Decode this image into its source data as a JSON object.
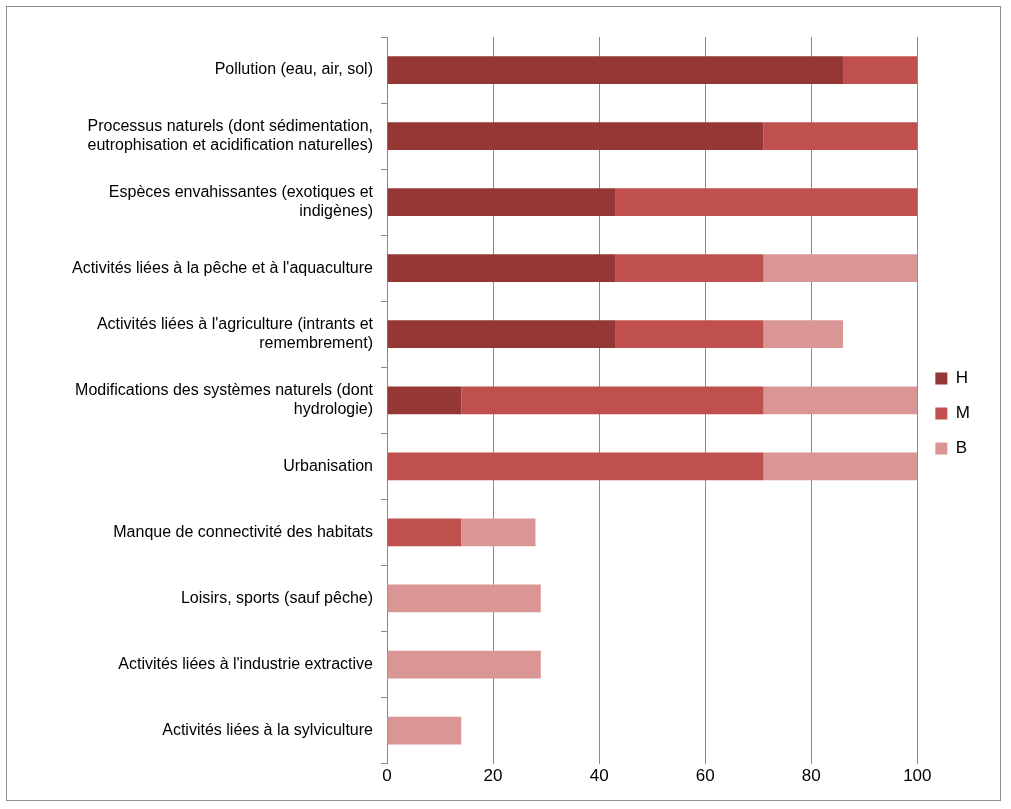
{
  "chart_data": {
    "type": "bar",
    "orientation": "horizontal",
    "stacked": true,
    "categories": [
      "Pollution (eau, air, sol)",
      "Processus naturels (dont sédimentation, eutrophisation et acidification naturelles)",
      "Espèces envahissantes (exotiques et indigènes)",
      "Activités liées à la pêche et à l'aquaculture",
      "Activités liées à l'agriculture (intrants et remembrement)",
      "Modifications des systèmes naturels (dont hydrologie)",
      "Urbanisation",
      "Manque de connectivité des habitats",
      "Loisirs, sports (sauf pêche)",
      "Activités liées à l'industrie extractive",
      "Activités liées à la sylviculture"
    ],
    "series": [
      {
        "name": "H",
        "color": "#953735",
        "values": [
          86,
          71,
          43,
          43,
          43,
          14,
          0,
          0,
          0,
          0,
          0
        ]
      },
      {
        "name": "M",
        "color": "#c0504d",
        "values": [
          14,
          29,
          57,
          28,
          28,
          57,
          71,
          14,
          0,
          0,
          0
        ]
      },
      {
        "name": "B",
        "color": "#d99694",
        "values": [
          0,
          0,
          0,
          29,
          15,
          29,
          29,
          14,
          29,
          29,
          14
        ]
      }
    ],
    "xlim": [
      0,
      100
    ],
    "xticks": [
      0,
      20,
      40,
      60,
      80,
      100
    ],
    "grid": "x",
    "legend": "right"
  }
}
